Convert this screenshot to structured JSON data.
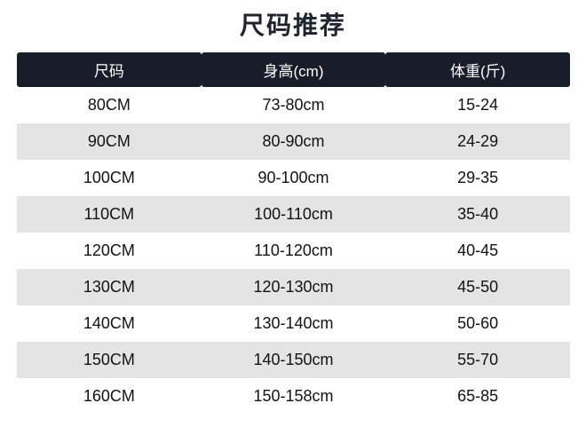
{
  "page": {
    "title": "尺码推荐"
  },
  "table": {
    "columns": [
      "尺码",
      "身高(cm)",
      "体重(斤)"
    ],
    "rows": [
      [
        "80CM",
        "73-80cm",
        "15-24"
      ],
      [
        "90CM",
        "80-90cm",
        "24-29"
      ],
      [
        "100CM",
        "90-100cm",
        "29-35"
      ],
      [
        "110CM",
        "100-110cm",
        "35-40"
      ],
      [
        "120CM",
        "110-120cm",
        "40-45"
      ],
      [
        "130CM",
        "120-130cm",
        "45-50"
      ],
      [
        "140CM",
        "130-140cm",
        "50-60"
      ],
      [
        "150CM",
        "140-150cm",
        "55-70"
      ],
      [
        "160CM",
        "150-158cm",
        "65-85"
      ]
    ]
  },
  "theme": {
    "page_bg": "#ffffff",
    "title_text": "#20242e",
    "header_bg": "#191d29",
    "header_text": "#ffffff",
    "row_bg": "#ffffff",
    "row_alt_bg": "#e4e4e4",
    "cell_text": "#121212"
  },
  "chart_data": {
    "type": "table",
    "title": "尺码推荐",
    "columns": [
      "尺码",
      "身高(cm)",
      "体重(斤)"
    ],
    "rows": [
      {
        "尺码": "80CM",
        "身高(cm)": "73-80cm",
        "体重(斤)": "15-24"
      },
      {
        "尺码": "90CM",
        "身高(cm)": "80-90cm",
        "体重(斤)": "24-29"
      },
      {
        "尺码": "100CM",
        "身高(cm)": "90-100cm",
        "体重(斤)": "29-35"
      },
      {
        "尺码": "110CM",
        "身高(cm)": "100-110cm",
        "体重(斤)": "35-40"
      },
      {
        "尺码": "120CM",
        "身高(cm)": "110-120cm",
        "体重(斤)": "40-45"
      },
      {
        "尺码": "130CM",
        "身高(cm)": "120-130cm",
        "体重(斤)": "45-50"
      },
      {
        "尺码": "140CM",
        "身高(cm)": "130-140cm",
        "体重(斤)": "50-60"
      },
      {
        "尺码": "150CM",
        "身高(cm)": "140-150cm",
        "体重(斤)": "55-70"
      },
      {
        "尺码": "160CM",
        "身高(cm)": "150-158cm",
        "体重(斤)": "65-85"
      }
    ],
    "layout": {
      "header_style": "dark bar, white text",
      "row_striping": "alternating white / light gray starting with white",
      "alignment": "all columns centered"
    }
  }
}
